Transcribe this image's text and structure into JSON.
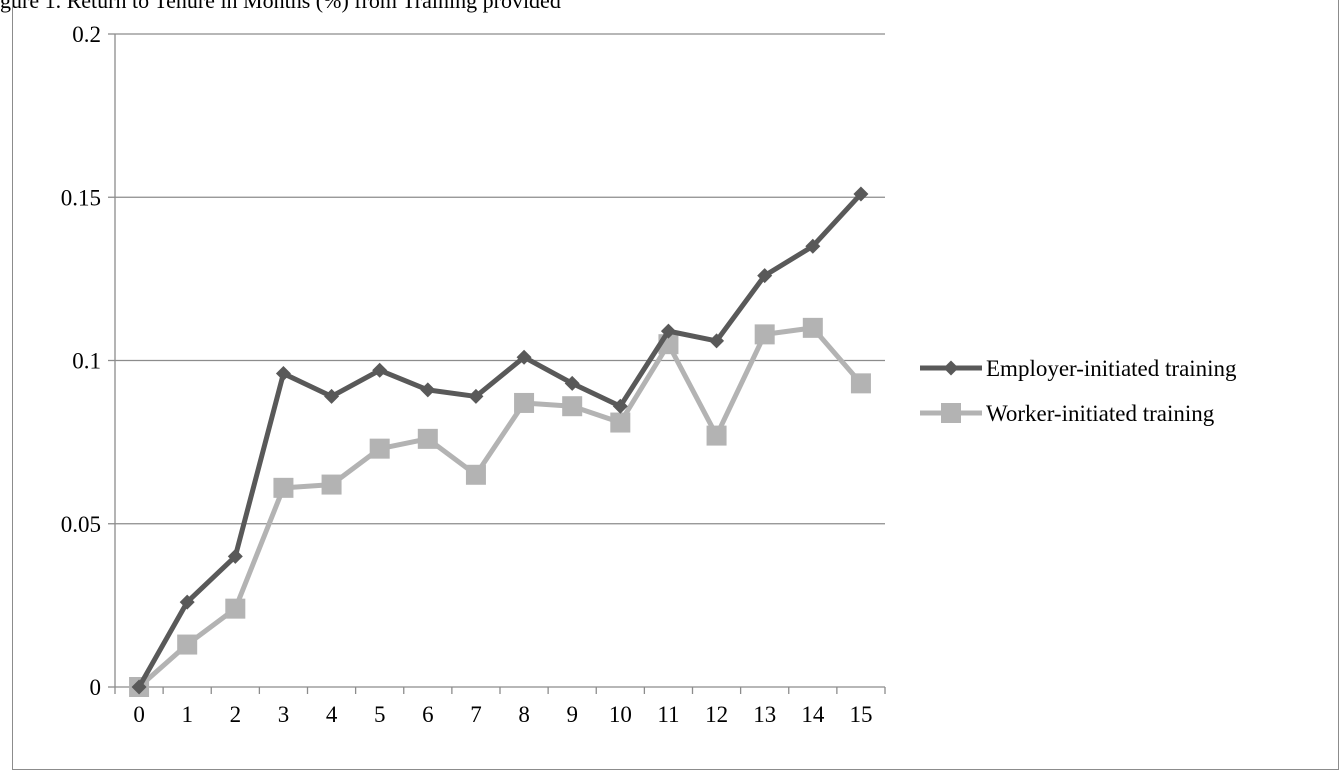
{
  "header": {
    "text": "gure 1. Return to Tenure in Months (%) from Training provided"
  },
  "colors": {
    "employer": "#595959",
    "worker": "#b3b3b3",
    "grid": "#8c8c8c",
    "axis": "#8c8c8c",
    "text": "#000000"
  },
  "chart_data": {
    "type": "line",
    "title": "",
    "xlabel": "",
    "ylabel": "",
    "x": [
      0,
      1,
      2,
      3,
      4,
      5,
      6,
      7,
      8,
      9,
      10,
      11,
      12,
      13,
      14,
      15
    ],
    "ylim": [
      0,
      0.2
    ],
    "yticks": [
      "0",
      "0.05",
      "0.1",
      "0.15",
      "0.2"
    ],
    "grid": "horizontal",
    "legend_position": "right",
    "series": [
      {
        "name": "Employer-initiated training",
        "marker": "diamond",
        "values": [
          0,
          0.026,
          0.04,
          0.096,
          0.089,
          0.097,
          0.091,
          0.089,
          0.101,
          0.093,
          0.086,
          0.109,
          0.106,
          0.126,
          0.135,
          0.151
        ]
      },
      {
        "name": "Worker-initiated training",
        "marker": "square",
        "values": [
          0,
          0.013,
          0.024,
          0.061,
          0.062,
          0.073,
          0.076,
          0.065,
          0.087,
          0.086,
          0.081,
          0.105,
          0.077,
          0.108,
          0.11,
          0.093
        ]
      }
    ]
  }
}
